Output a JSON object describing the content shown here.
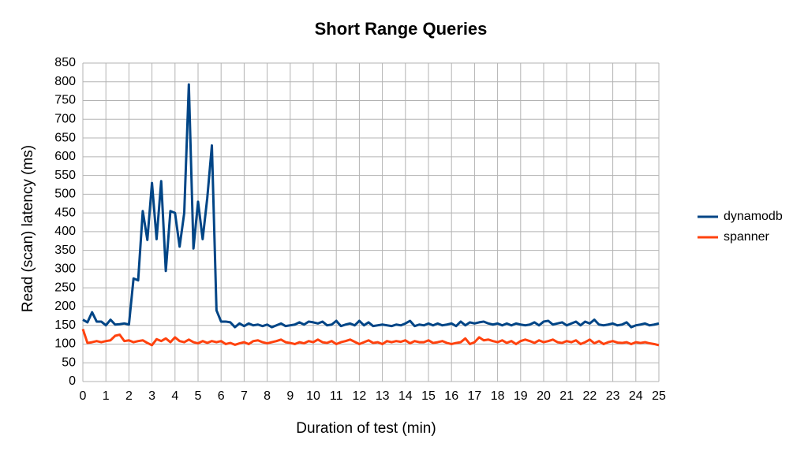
{
  "chart_data": {
    "type": "line",
    "title": "Short Range Queries",
    "xlabel": "Duration of test (min)",
    "ylabel": "Read (scan) latency (ms)",
    "x": [
      0,
      0.2,
      0.4,
      0.6,
      0.8,
      1,
      1.2,
      1.4,
      1.6,
      1.8,
      2,
      2.2,
      2.4,
      2.6,
      2.8,
      3,
      3.2,
      3.4,
      3.6,
      3.8,
      4,
      4.2,
      4.4,
      4.6,
      4.8,
      5,
      5.2,
      5.4,
      5.6,
      5.8,
      6,
      6.2,
      6.4,
      6.6,
      6.8,
      7,
      7.2,
      7.4,
      7.6,
      7.8,
      8,
      8.2,
      8.4,
      8.6,
      8.8,
      9,
      9.2,
      9.4,
      9.6,
      9.8,
      10,
      10.2,
      10.4,
      10.6,
      10.8,
      11,
      11.2,
      11.4,
      11.6,
      11.8,
      12,
      12.2,
      12.4,
      12.6,
      12.8,
      13,
      13.2,
      13.4,
      13.6,
      13.8,
      14,
      14.2,
      14.4,
      14.6,
      14.8,
      15,
      15.2,
      15.4,
      15.6,
      15.8,
      16,
      16.2,
      16.4,
      16.6,
      16.8,
      17,
      17.2,
      17.4,
      17.6,
      17.8,
      18,
      18.2,
      18.4,
      18.6,
      18.8,
      19,
      19.2,
      19.4,
      19.6,
      19.8,
      20,
      20.2,
      20.4,
      20.6,
      20.8,
      21,
      21.2,
      21.4,
      21.6,
      21.8,
      22,
      22.2,
      22.4,
      22.6,
      22.8,
      23,
      23.2,
      23.4,
      23.6,
      23.8,
      24,
      24.2,
      24.4,
      24.6,
      24.8,
      25
    ],
    "series": [
      {
        "name": "dynamodb",
        "color": "#004586",
        "values": [
          165,
          158,
          185,
          160,
          160,
          150,
          165,
          152,
          153,
          155,
          152,
          275,
          270,
          455,
          378,
          530,
          380,
          535,
          295,
          455,
          450,
          360,
          450,
          793,
          355,
          480,
          380,
          490,
          630,
          190,
          160,
          160,
          158,
          145,
          155,
          148,
          155,
          150,
          152,
          148,
          152,
          145,
          150,
          155,
          148,
          150,
          152,
          158,
          152,
          160,
          158,
          155,
          160,
          150,
          152,
          162,
          148,
          152,
          155,
          150,
          162,
          150,
          158,
          148,
          150,
          152,
          150,
          148,
          152,
          150,
          155,
          162,
          148,
          152,
          150,
          155,
          150,
          155,
          150,
          152,
          155,
          148,
          160,
          150,
          158,
          155,
          158,
          160,
          155,
          152,
          155,
          150,
          155,
          150,
          155,
          152,
          150,
          152,
          158,
          150,
          160,
          162,
          152,
          155,
          158,
          150,
          155,
          160,
          150,
          160,
          155,
          165,
          152,
          150,
          152,
          155,
          150,
          152,
          158,
          145,
          150,
          152,
          155,
          150,
          152,
          155
        ]
      },
      {
        "name": "spanner",
        "color": "#ff420e",
        "values": [
          140,
          103,
          105,
          108,
          105,
          108,
          110,
          122,
          125,
          108,
          110,
          105,
          108,
          110,
          103,
          97,
          113,
          108,
          115,
          105,
          118,
          108,
          105,
          112,
          105,
          102,
          108,
          103,
          108,
          105,
          108,
          100,
          103,
          98,
          102,
          105,
          100,
          108,
          110,
          105,
          102,
          105,
          108,
          112,
          105,
          103,
          100,
          105,
          102,
          108,
          105,
          112,
          105,
          103,
          108,
          100,
          105,
          108,
          112,
          106,
          100,
          105,
          110,
          103,
          105,
          100,
          108,
          105,
          108,
          106,
          110,
          102,
          108,
          105,
          105,
          110,
          103,
          105,
          108,
          103,
          100,
          103,
          105,
          115,
          100,
          105,
          118,
          110,
          112,
          108,
          105,
          110,
          103,
          108,
          100,
          108,
          112,
          108,
          103,
          110,
          105,
          108,
          112,
          105,
          103,
          108,
          105,
          110,
          100,
          105,
          112,
          102,
          108,
          100,
          105,
          108,
          104,
          103,
          105,
          100,
          105,
          103,
          105,
          102,
          100,
          97
        ]
      }
    ],
    "xlim": [
      0,
      25
    ],
    "xticks": [
      0,
      1,
      2,
      3,
      4,
      5,
      6,
      7,
      8,
      9,
      10,
      11,
      12,
      13,
      14,
      15,
      16,
      17,
      18,
      19,
      20,
      21,
      22,
      23,
      24,
      25
    ],
    "ylim": [
      0,
      850
    ],
    "yticks": [
      0,
      50,
      100,
      150,
      200,
      250,
      300,
      350,
      400,
      450,
      500,
      550,
      600,
      650,
      700,
      750,
      800,
      850
    ],
    "grid": true,
    "legend": "right"
  }
}
